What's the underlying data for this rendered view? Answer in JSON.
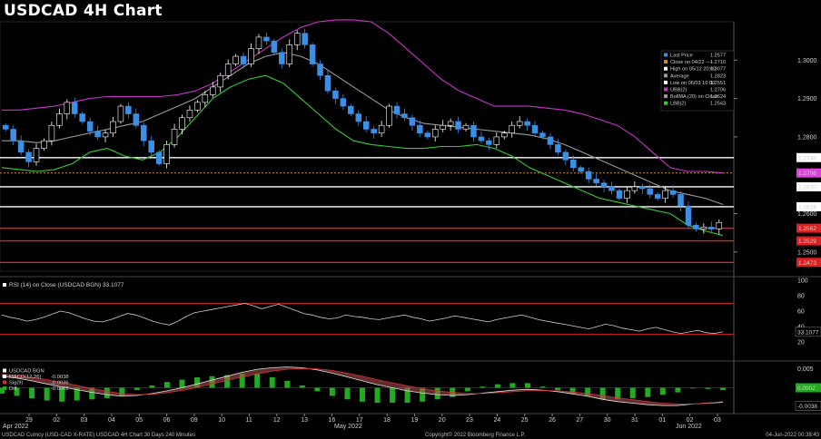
{
  "title": "USDCAD 4H Chart",
  "footer": {
    "left": "USDCAD Curncy (USD-CAD X-RATE) USDCAD 4H Chart 30 Days 240 Minutes",
    "center": "Copyright© 2022 Bloomberg Finance L.P.",
    "right": "04-Jun-2022 00:38:43"
  },
  "colors": {
    "up": "#ffffff",
    "down": "#3b8fe6",
    "upper_band": "#cc33cc",
    "lower_band": "#33cc33",
    "average": "#9a9a9a",
    "rsi": "#cfcfcf"
  },
  "chart_data": [
    {
      "type": "candlestick",
      "panel": "price",
      "ylim": [
        1.245,
        1.31
      ],
      "y_ticks": [
        "1.3000",
        "1.2900",
        "1.2800",
        "1.2600",
        "1.2500"
      ],
      "x_ticks": [
        "29",
        "02",
        "03",
        "04",
        "05",
        "06",
        "09",
        "10",
        "11",
        "12",
        "13",
        "16",
        "17",
        "18",
        "19",
        "20",
        "23",
        "24",
        "25",
        "26",
        "27",
        "30",
        "31",
        "01",
        "02",
        "03"
      ],
      "x_period_labels": [
        "Apr 2022",
        "May 2022",
        "Jun 2022"
      ],
      "legend": [
        {
          "label": "Last Price",
          "value": "1.2577"
        },
        {
          "label": "Close on 04/22 ----",
          "value": "1.2710"
        },
        {
          "label": "High on 05/12 20:00",
          "value": "1.3077"
        },
        {
          "label": "Average",
          "value": "1.2823"
        },
        {
          "label": "Low on 06/03 16:00",
          "value": "1.2551"
        },
        {
          "label": "UBB(2)",
          "value": "1.2706"
        },
        {
          "label": "BollMA (20) on Close",
          "value": "1.2624"
        },
        {
          "label": "LBB(2)",
          "value": "1.2543"
        }
      ],
      "horizontal_levels": [
        {
          "value": 1.2746,
          "label": "1.2746",
          "color": "#ffffff"
        },
        {
          "value": 1.2706,
          "label": "1.2706",
          "color": "#e040e0",
          "style": "dotted-orange"
        },
        {
          "value": 1.267,
          "label": "1.2670",
          "color": "#ffffff"
        },
        {
          "value": 1.2618,
          "label": "1.2618",
          "color": "#ffffff"
        },
        {
          "value": 1.2562,
          "label": "1.2562",
          "color": "#e02020"
        },
        {
          "value": 1.2529,
          "label": "1.2529",
          "color": "#e02020"
        },
        {
          "value": 1.2473,
          "label": "1.2473",
          "color": "#e02020"
        }
      ],
      "candles_close": [
        1.282,
        1.279,
        1.276,
        1.2735,
        1.277,
        1.279,
        1.283,
        1.286,
        1.289,
        1.286,
        1.284,
        1.2815,
        1.28,
        1.281,
        1.284,
        1.288,
        1.286,
        1.283,
        1.279,
        1.276,
        1.273,
        1.278,
        1.282,
        1.285,
        1.287,
        1.289,
        1.291,
        1.293,
        1.296,
        1.299,
        1.301,
        1.299,
        1.303,
        1.306,
        1.305,
        1.302,
        1.299,
        1.304,
        1.307,
        1.304,
        1.299,
        1.296,
        1.292,
        1.29,
        1.288,
        1.286,
        1.284,
        1.282,
        1.281,
        1.283,
        1.288,
        1.286,
        1.285,
        1.283,
        1.281,
        1.28,
        1.282,
        1.283,
        1.284,
        1.282,
        1.283,
        1.28,
        1.279,
        1.278,
        1.28,
        1.281,
        1.283,
        1.284,
        1.283,
        1.281,
        1.28,
        1.278,
        1.276,
        1.274,
        1.272,
        1.271,
        1.269,
        1.268,
        1.267,
        1.266,
        1.264,
        1.266,
        1.267,
        1.2665,
        1.265,
        1.264,
        1.266,
        1.265,
        1.262,
        1.257,
        1.256,
        1.2565,
        1.256,
        1.2577
      ],
      "bollinger": {
        "upper": [
          1.287,
          1.287,
          1.2875,
          1.288,
          1.289,
          1.29,
          1.2905,
          1.2905,
          1.2905,
          1.2905,
          1.291,
          1.292,
          1.294,
          1.297,
          1.3,
          1.303,
          1.306,
          1.3085,
          1.31,
          1.3105,
          1.3105,
          1.31,
          1.307,
          1.303,
          1.299,
          1.295,
          1.292,
          1.29,
          1.288,
          1.288,
          1.288,
          1.2875,
          1.287,
          1.286,
          1.2845,
          1.283,
          1.28,
          1.276,
          1.272,
          1.271,
          1.271,
          1.2706
        ],
        "middle": [
          1.279,
          1.279,
          1.2785,
          1.279,
          1.28,
          1.281,
          1.282,
          1.283,
          1.284,
          1.286,
          1.288,
          1.29,
          1.293,
          1.296,
          1.299,
          1.301,
          1.302,
          1.301,
          1.299,
          1.296,
          1.293,
          1.29,
          1.287,
          1.285,
          1.2835,
          1.283,
          1.2825,
          1.282,
          1.2815,
          1.281,
          1.2805,
          1.2795,
          1.278,
          1.276,
          1.274,
          1.272,
          1.27,
          1.268,
          1.266,
          1.265,
          1.264,
          1.2624
        ],
        "lower": [
          1.272,
          1.2715,
          1.271,
          1.2715,
          1.273,
          1.276,
          1.277,
          1.275,
          1.274,
          1.276,
          1.28,
          1.285,
          1.29,
          1.293,
          1.295,
          1.296,
          1.294,
          1.29,
          1.286,
          1.282,
          1.279,
          1.278,
          1.2775,
          1.277,
          1.277,
          1.2775,
          1.2775,
          1.278,
          1.277,
          1.275,
          1.272,
          1.27,
          1.268,
          1.266,
          1.264,
          1.263,
          1.262,
          1.261,
          1.26,
          1.257,
          1.2555,
          1.2543
        ]
      }
    },
    {
      "type": "line",
      "panel": "rsi",
      "legend": "RSI (14)  on Close (USDCAD BGN) 33.1077",
      "ylim": [
        0,
        100
      ],
      "y_ticks": [
        "100",
        "80",
        "60",
        "40",
        "20"
      ],
      "overbought": 70,
      "oversold": 30,
      "last_label": "33.1077",
      "values": [
        55,
        52,
        50,
        47,
        49,
        52,
        56,
        60,
        58,
        54,
        50,
        47,
        46,
        49,
        53,
        57,
        55,
        51,
        47,
        44,
        42,
        47,
        53,
        58,
        60,
        62,
        64,
        66,
        68,
        70,
        67,
        63,
        66,
        69,
        65,
        61,
        57,
        55,
        52,
        50,
        51,
        55,
        53,
        52,
        50,
        49,
        51,
        53,
        55,
        52,
        50,
        47,
        49,
        51,
        54,
        52,
        50,
        48,
        46,
        49,
        51,
        53,
        55,
        52,
        49,
        47,
        45,
        43,
        41,
        39,
        37,
        40,
        43,
        41,
        38,
        36,
        34,
        37,
        39,
        36,
        33,
        31,
        33,
        35,
        32,
        31,
        33.1
      ]
    },
    {
      "type": "bar+line",
      "panel": "macd",
      "legend": [
        {
          "label": "USDCAD BGN",
          "value": ""
        },
        {
          "label": "MACD(12,26)",
          "value": "-0.0038"
        },
        {
          "label": "Sig(9)",
          "value": "-0.0036"
        },
        {
          "label": "Diff",
          "value": "-0.0002"
        }
      ],
      "ylim": [
        -0.006,
        0.006
      ],
      "y_ticks": [
        "0.005",
        "-0.005"
      ],
      "last_labels": [
        "0.0002",
        "-0.0038"
      ],
      "macd": [
        0.003,
        0.0025,
        0.0018,
        0.001,
        0.0002,
        -0.0005,
        -0.0012,
        -0.0018,
        -0.0022,
        -0.002,
        -0.0015,
        -0.0008,
        0.0,
        0.001,
        0.002,
        0.003,
        0.004,
        0.0048,
        0.0052,
        0.0054,
        0.0052,
        0.0046,
        0.0038,
        0.0028,
        0.0018,
        0.0008,
        0.0,
        -0.0008,
        -0.0014,
        -0.0018,
        -0.002,
        -0.0018,
        -0.0014,
        -0.001,
        -0.0006,
        -0.0004,
        -0.0006,
        -0.001,
        -0.0016,
        -0.0022,
        -0.003,
        -0.0036,
        -0.004,
        -0.0044,
        -0.0046,
        -0.0046,
        -0.0042,
        -0.004,
        -0.0038
      ],
      "signal": [
        0.0035,
        0.0032,
        0.0027,
        0.0021,
        0.0014,
        0.0006,
        -0.0002,
        -0.0009,
        -0.0015,
        -0.0018,
        -0.0017,
        -0.0013,
        -0.0007,
        0.0001,
        0.001,
        0.0019,
        0.0028,
        0.0036,
        0.0043,
        0.0048,
        0.005,
        0.0049,
        0.0045,
        0.0038,
        0.003,
        0.0021,
        0.0013,
        0.0005,
        -0.0002,
        -0.0008,
        -0.0012,
        -0.0015,
        -0.0015,
        -0.0013,
        -0.001,
        -0.0008,
        -0.0007,
        -0.0008,
        -0.0011,
        -0.0015,
        -0.002,
        -0.0026,
        -0.0031,
        -0.0036,
        -0.004,
        -0.0042,
        -0.0042,
        -0.0039,
        -0.0036
      ]
    }
  ]
}
